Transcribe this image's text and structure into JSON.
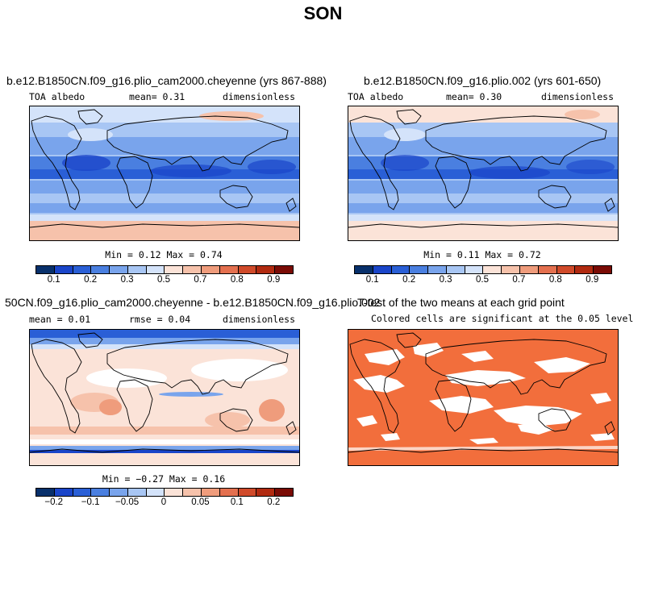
{
  "title": "SON",
  "panels": [
    {
      "title": "b.e12.B1850CN.f09_g16.plio_cam2000.cheyenne (yrs 867-888)",
      "variable": "TOA albedo",
      "stat_text": "mean=  0.31",
      "units": "dimensionless",
      "minmax_text": "Min =  0.12 Max =  0.74",
      "colorbar_labels": [
        "0.1",
        "0.2",
        "0.3",
        "0.5",
        "0.7",
        "0.8",
        "0.9"
      ]
    },
    {
      "title": "b.e12.B1850CN.f09_g16.plio.002 (yrs 601-650)",
      "variable": "TOA albedo",
      "stat_text": "mean=  0.30",
      "units": "dimensionless",
      "minmax_text": "Min =  0.11 Max =  0.72",
      "colorbar_labels": [
        "0.1",
        "0.2",
        "0.3",
        "0.5",
        "0.7",
        "0.8",
        "0.9"
      ]
    },
    {
      "title": "50CN.f09_g16.plio_cam2000.cheyenne - b.e12.B1850CN.f09_g16.plio.002",
      "stat_text": "mean =  0.01",
      "rmse_text": "rmse =  0.04",
      "units": "dimensionless",
      "minmax_text": "Min = −0.27 Max =  0.16",
      "colorbar_labels": [
        "−0.2",
        "−0.1",
        "−0.05",
        "0",
        "0.05",
        "0.1",
        "0.2"
      ]
    },
    {
      "title": "T-test of the two means at each grid point",
      "subtitle": "Colored cells are significant at the 0.05 level"
    }
  ],
  "colors": {
    "albedo_scale": [
      "#08306b",
      "#1a45c9",
      "#2a5fd6",
      "#4a7fe0",
      "#79a4ec",
      "#a8c6f4",
      "#d4e3fa",
      "#fbe3d8",
      "#f6c2ab",
      "#ef9c7c",
      "#e4704f",
      "#d04a2a",
      "#b12a10",
      "#7a0b05"
    ],
    "diff_scale": [
      "#08306b",
      "#1a45c9",
      "#2a5fd6",
      "#4a7fe0",
      "#79a4ec",
      "#a8c6f4",
      "#d4e3fa",
      "#fbe3d8",
      "#f6c2ab",
      "#ef9c7c",
      "#e4704f",
      "#d04a2a",
      "#b12a10",
      "#7a0b05"
    ],
    "significant": "#f26e3c",
    "not_significant": "#ffffff",
    "coastline": "#000000"
  }
}
